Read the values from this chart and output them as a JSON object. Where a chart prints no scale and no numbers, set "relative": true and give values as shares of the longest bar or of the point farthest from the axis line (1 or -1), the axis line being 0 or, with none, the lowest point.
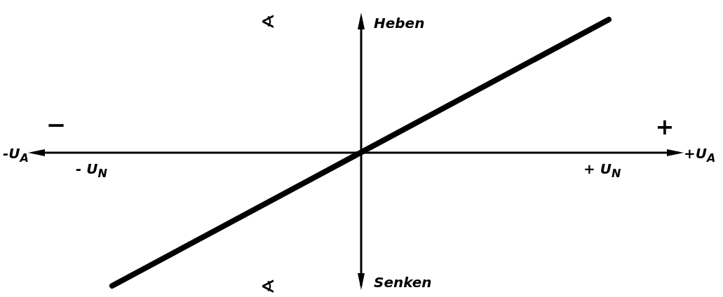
{
  "chart_data": {
    "type": "line",
    "relative": true,
    "categories": [
      null,
      null,
      null
    ],
    "series": [
      {
        "color": "#000000",
        "values": [
          -1,
          0,
          1
        ]
      }
    ],
    "annotations": [
      "∢",
      "Heben",
      "−",
      "+",
      "-U$_{A}$",
      "- U$_{N}$",
      "+ U$_{N}$",
      "+U$_{A}$",
      "∢",
      "Senken"
    ]
  }
}
